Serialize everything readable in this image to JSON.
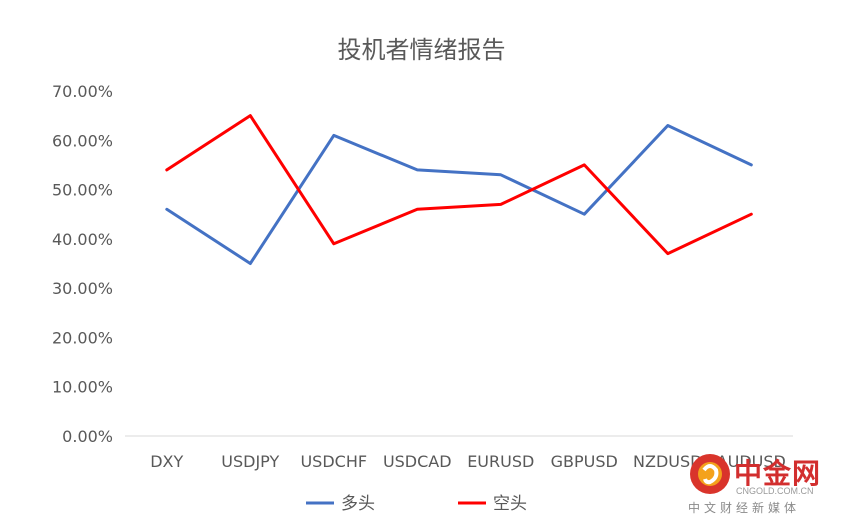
{
  "chart_data": {
    "type": "line",
    "title": "投机者情绪报告",
    "categories": [
      "DXY",
      "USDJPY",
      "USDCHF",
      "USDCAD",
      "EURUSD",
      "GBPUSD",
      "NZDUSD",
      "AUDUSD"
    ],
    "yticks": [
      "0.00%",
      "10.00%",
      "20.00%",
      "30.00%",
      "40.00%",
      "50.00%",
      "60.00%",
      "70.00%"
    ],
    "ylim": [
      0,
      0.7
    ],
    "grid": false,
    "legend_position": "bottom",
    "series": [
      {
        "name": "多头",
        "color": "#4472c4",
        "values": [
          0.46,
          0.35,
          0.61,
          0.54,
          0.53,
          0.45,
          0.63,
          0.55
        ]
      },
      {
        "name": "空头",
        "color": "#ff0000",
        "values": [
          0.54,
          0.65,
          0.39,
          0.46,
          0.47,
          0.55,
          0.37,
          0.45
        ]
      }
    ]
  },
  "watermark": {
    "name": "中金网",
    "url": "CNGOLD.COM.CN",
    "tagline": "中文财经新媒体"
  }
}
